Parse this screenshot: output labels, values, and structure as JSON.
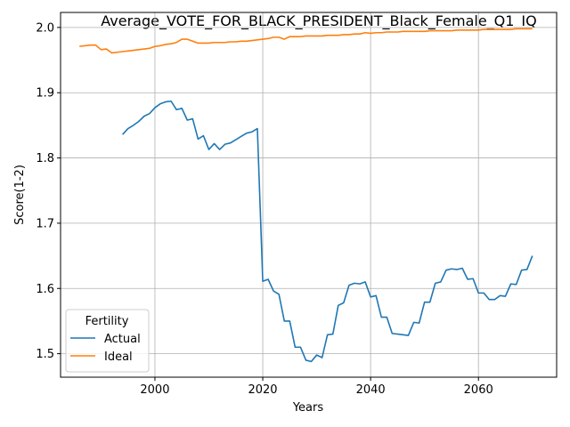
{
  "chart_data": {
    "type": "line",
    "title": "Average_VOTE_FOR_BLACK_PRESIDENT_Black_Female_Q1_IQ",
    "xlabel": "Years",
    "ylabel": "Score(1-2)",
    "xlim": [
      1982.5,
      2074.5
    ],
    "ylim": [
      1.464,
      2.023
    ],
    "xticks": [
      2000,
      2020,
      2040,
      2060
    ],
    "yticks": [
      1.5,
      1.6,
      1.7,
      1.8,
      1.9,
      2.0
    ],
    "xtick_labels": [
      "2000",
      "2020",
      "2040",
      "2060"
    ],
    "ytick_labels": [
      "1.5",
      "1.6",
      "1.7",
      "1.8",
      "1.9",
      "2.0"
    ],
    "grid": true,
    "legend": {
      "title": "Fertility",
      "position": "lower-left",
      "entries": [
        "Actual",
        "Ideal"
      ]
    },
    "series": [
      {
        "name": "Actual",
        "color": "#1f77b4",
        "x": [
          1994,
          1995,
          1996,
          1997,
          1998,
          1999,
          2000,
          2001,
          2002,
          2003,
          2004,
          2005,
          2006,
          2007,
          2008,
          2009,
          2010,
          2011,
          2012,
          2013,
          2014,
          2015,
          2016,
          2017,
          2018,
          2019,
          2020,
          2021,
          2022,
          2023,
          2024,
          2025,
          2026,
          2027,
          2028,
          2029,
          2030,
          2031,
          2032,
          2033,
          2034,
          2035,
          2036,
          2037,
          2038,
          2039,
          2040,
          2041,
          2042,
          2043,
          2044,
          2045,
          2046,
          2047,
          2048,
          2049,
          2050,
          2051,
          2052,
          2053,
          2054,
          2055,
          2056,
          2057,
          2058,
          2059,
          2060,
          2061,
          2062,
          2063,
          2064,
          2065,
          2066,
          2067,
          2068,
          2069,
          2070
        ],
        "values": [
          1.836,
          1.845,
          1.85,
          1.856,
          1.864,
          1.868,
          1.877,
          1.883,
          1.886,
          1.887,
          1.874,
          1.876,
          1.858,
          1.86,
          1.829,
          1.834,
          1.813,
          1.822,
          1.813,
          1.821,
          1.823,
          1.828,
          1.833,
          1.838,
          1.84,
          1.845,
          1.611,
          1.614,
          1.596,
          1.591,
          1.55,
          1.55,
          1.51,
          1.51,
          1.49,
          1.488,
          1.498,
          1.494,
          1.529,
          1.53,
          1.574,
          1.578,
          1.605,
          1.608,
          1.607,
          1.61,
          1.587,
          1.589,
          1.556,
          1.556,
          1.531,
          1.53,
          1.529,
          1.528,
          1.548,
          1.547,
          1.579,
          1.579,
          1.608,
          1.61,
          1.628,
          1.63,
          1.629,
          1.631,
          1.614,
          1.615,
          1.593,
          1.593,
          1.583,
          1.583,
          1.589,
          1.588,
          1.607,
          1.606,
          1.628,
          1.629,
          1.65
        ]
      },
      {
        "name": "Ideal",
        "color": "#ff7f0e",
        "x": [
          1986,
          1987,
          1988,
          1989,
          1990,
          1991,
          1992,
          1993,
          1994,
          1995,
          1996,
          1997,
          1998,
          1999,
          2000,
          2001,
          2002,
          2003,
          2004,
          2005,
          2006,
          2007,
          2008,
          2009,
          2010,
          2011,
          2012,
          2013,
          2014,
          2015,
          2016,
          2017,
          2018,
          2019,
          2020,
          2021,
          2022,
          2023,
          2024,
          2025,
          2026,
          2027,
          2028,
          2029,
          2030,
          2031,
          2032,
          2033,
          2034,
          2035,
          2036,
          2037,
          2038,
          2039,
          2040,
          2041,
          2042,
          2043,
          2044,
          2045,
          2046,
          2047,
          2048,
          2049,
          2050,
          2051,
          2052,
          2053,
          2054,
          2055,
          2056,
          2057,
          2058,
          2059,
          2060,
          2061,
          2062,
          2063,
          2064,
          2065,
          2066,
          2067,
          2068,
          2069,
          2070
        ],
        "values": [
          1.971,
          1.972,
          1.973,
          1.973,
          1.966,
          1.967,
          1.961,
          1.962,
          1.963,
          1.964,
          1.965,
          1.966,
          1.967,
          1.968,
          1.971,
          1.972,
          1.974,
          1.975,
          1.977,
          1.982,
          1.982,
          1.979,
          1.976,
          1.976,
          1.976,
          1.977,
          1.977,
          1.977,
          1.978,
          1.978,
          1.979,
          1.979,
          1.98,
          1.981,
          1.982,
          1.983,
          1.985,
          1.985,
          1.982,
          1.986,
          1.986,
          1.986,
          1.987,
          1.987,
          1.987,
          1.987,
          1.988,
          1.988,
          1.988,
          1.989,
          1.989,
          1.99,
          1.99,
          1.992,
          1.991,
          1.992,
          1.992,
          1.993,
          1.993,
          1.993,
          1.994,
          1.994,
          1.994,
          1.994,
          1.994,
          1.995,
          1.995,
          1.995,
          1.995,
          1.995,
          1.996,
          1.996,
          1.996,
          1.996,
          1.996,
          1.997,
          1.997,
          1.997,
          1.997,
          1.997,
          1.997,
          1.998,
          1.998,
          1.998,
          1.998
        ]
      }
    ]
  }
}
